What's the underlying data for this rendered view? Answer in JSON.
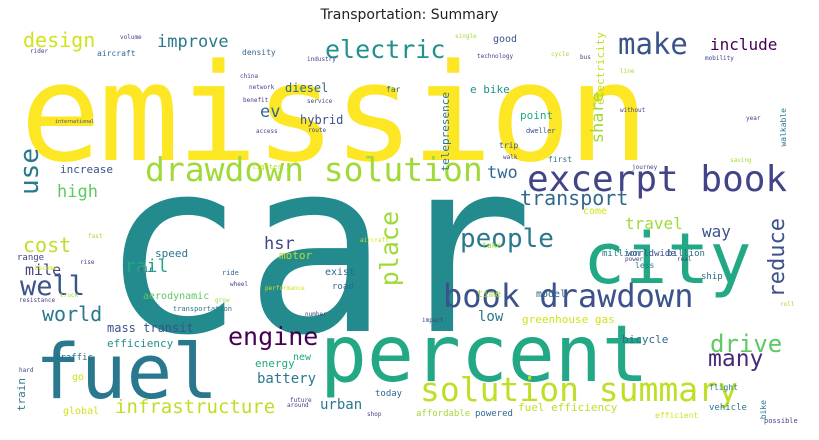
{
  "title": "Transportation: Summary",
  "words": [
    {
      "text": "car",
      "color": "#238a8d"
    },
    {
      "text": "emission",
      "color": "#fde725"
    },
    {
      "text": "percent",
      "color": "#22a884"
    },
    {
      "text": "fuel",
      "color": "#2a788e"
    },
    {
      "text": "city",
      "color": "#22a884"
    },
    {
      "text": "excerpt book",
      "color": "#414487"
    },
    {
      "text": "drawdown solution",
      "color": "#a0da39"
    },
    {
      "text": "book drawdown",
      "color": "#3b528b"
    },
    {
      "text": "solution summary",
      "color": "#bddf26"
    },
    {
      "text": "electric",
      "color": "#21918c"
    },
    {
      "text": "make",
      "color": "#3b528b"
    },
    {
      "text": "people",
      "color": "#2a788e"
    },
    {
      "text": "design",
      "color": "#d2e21b"
    },
    {
      "text": "improve",
      "color": "#2a788e"
    },
    {
      "text": "include",
      "color": "#440154"
    },
    {
      "text": "use",
      "color": "#2a788e"
    },
    {
      "text": "well",
      "color": "#3b528b"
    },
    {
      "text": "transport",
      "color": "#31688e"
    },
    {
      "text": "engine",
      "color": "#440154"
    },
    {
      "text": "drive",
      "color": "#5ec962"
    },
    {
      "text": "many",
      "color": "#482878"
    },
    {
      "text": "infrastructure",
      "color": "#bddf26"
    },
    {
      "text": "world",
      "color": "#2a788e"
    },
    {
      "text": "place",
      "color": "#a0da39"
    },
    {
      "text": "reduce",
      "color": "#3b528b"
    },
    {
      "text": "cost",
      "color": "#bddf26"
    },
    {
      "text": "high",
      "color": "#5ec962"
    },
    {
      "text": "mile",
      "color": "#414487"
    },
    {
      "text": "rail",
      "color": "#22a884"
    },
    {
      "text": "travel",
      "color": "#a0da39"
    },
    {
      "text": "way",
      "color": "#3b528b"
    },
    {
      "text": "ev",
      "color": "#31688e"
    },
    {
      "text": "hsr",
      "color": "#414487"
    },
    {
      "text": "two",
      "color": "#31688e"
    },
    {
      "text": "share",
      "color": "#a0da39"
    },
    {
      "text": "hybrid",
      "color": "#3b528b"
    },
    {
      "text": "diesel",
      "color": "#31688e"
    },
    {
      "text": "e bike",
      "color": "#21918c"
    },
    {
      "text": "point",
      "color": "#22a884"
    },
    {
      "text": "electricity",
      "color": "#bddf26"
    },
    {
      "text": "telepresence",
      "color": "#2a788e"
    },
    {
      "text": "increase",
      "color": "#3b528b"
    },
    {
      "text": "low",
      "color": "#2a788e"
    },
    {
      "text": "greenhouse gas",
      "color": "#d2e21b"
    },
    {
      "text": "mass transit",
      "color": "#3b528b"
    },
    {
      "text": "bicycle",
      "color": "#31688e"
    },
    {
      "text": "efficiency",
      "color": "#21918c"
    },
    {
      "text": "aerodynamic",
      "color": "#5ec962"
    },
    {
      "text": "battery",
      "color": "#2a788e"
    },
    {
      "text": "urban",
      "color": "#2a788e"
    },
    {
      "text": "energy",
      "color": "#22a884"
    },
    {
      "text": "fuel efficiency",
      "color": "#bddf26"
    },
    {
      "text": "global",
      "color": "#d2e21b"
    },
    {
      "text": "train",
      "color": "#2a788e"
    },
    {
      "text": "speed",
      "color": "#2a788e"
    },
    {
      "text": "motor",
      "color": "#bddf26"
    },
    {
      "text": "exist",
      "color": "#31688e"
    },
    {
      "text": "road",
      "color": "#31688e"
    },
    {
      "text": "time",
      "color": "#a0da39"
    },
    {
      "text": "model",
      "color": "#31688e"
    },
    {
      "text": "come",
      "color": "#d2e21b"
    },
    {
      "text": "good",
      "color": "#3b528b"
    },
    {
      "text": "range",
      "color": "#414487"
    },
    {
      "text": "new",
      "color": "#22a884"
    },
    {
      "text": "go",
      "color": "#d2e21b"
    },
    {
      "text": "affordable",
      "color": "#a0da39"
    },
    {
      "text": "powered",
      "color": "#31688e"
    },
    {
      "text": "billion",
      "color": "#31688e"
    },
    {
      "text": "million",
      "color": "#2a788e"
    },
    {
      "text": "worldwide",
      "color": "#3b528b"
    },
    {
      "text": "ship",
      "color": "#31688e"
    },
    {
      "text": "flight",
      "color": "#2a788e"
    },
    {
      "text": "vehicle",
      "color": "#2a788e"
    },
    {
      "text": "efficient",
      "color": "#d2e21b"
    },
    {
      "text": "bike",
      "color": "#2a788e"
    },
    {
      "text": "possible",
      "color": "#414487"
    },
    {
      "text": "traffic",
      "color": "#31688e"
    },
    {
      "text": "today",
      "color": "#31688e"
    },
    {
      "text": "transportation",
      "color": "#2a788e"
    },
    {
      "text": "density",
      "color": "#31688e"
    },
    {
      "text": "aircraft",
      "color": "#31688e"
    },
    {
      "text": "trip",
      "color": "#3b528b"
    },
    {
      "text": "far",
      "color": "#31688e"
    },
    {
      "text": "dweller",
      "color": "#3b528b"
    },
    {
      "text": "first",
      "color": "#2a788e"
    },
    {
      "text": "take",
      "color": "#a0da39"
    },
    {
      "text": "less",
      "color": "#2a788e"
    },
    {
      "text": "walkable",
      "color": "#2a788e"
    },
    {
      "text": "lighter",
      "color": "#bddf26"
    },
    {
      "text": "air",
      "color": "#31688e"
    },
    {
      "text": "ride",
      "color": "#31688e"
    },
    {
      "text": "rider",
      "color": "#414487"
    },
    {
      "text": "volume",
      "color": "#414487"
    },
    {
      "text": "industry",
      "color": "#414487"
    },
    {
      "text": "network",
      "color": "#414487"
    },
    {
      "text": "china",
      "color": "#414487"
    },
    {
      "text": "benefit",
      "color": "#414487"
    },
    {
      "text": "international",
      "color": "#414487"
    },
    {
      "text": "service",
      "color": "#414487"
    },
    {
      "text": "route",
      "color": "#414487"
    },
    {
      "text": "access",
      "color": "#414487"
    },
    {
      "text": "single",
      "color": "#a0da39"
    },
    {
      "text": "technology",
      "color": "#414487"
    },
    {
      "text": "cycle",
      "color": "#a0da39"
    },
    {
      "text": "bus",
      "color": "#414487"
    },
    {
      "text": "mobility",
      "color": "#414487"
    },
    {
      "text": "line",
      "color": "#a0da39"
    },
    {
      "text": "without",
      "color": "#414487"
    },
    {
      "text": "year",
      "color": "#414487"
    },
    {
      "text": "saving",
      "color": "#a0da39"
    },
    {
      "text": "walk",
      "color": "#414487"
    },
    {
      "text": "journey",
      "color": "#414487"
    },
    {
      "text": "power",
      "color": "#414487"
    },
    {
      "text": "real",
      "color": "#414487"
    },
    {
      "text": "roll",
      "color": "#a0da39"
    },
    {
      "text": "wheel",
      "color": "#414487"
    },
    {
      "text": "grow",
      "color": "#a0da39"
    },
    {
      "text": "performance",
      "color": "#d2e21b"
    },
    {
      "text": "number",
      "color": "#414487"
    },
    {
      "text": "impact",
      "color": "#414487"
    },
    {
      "text": "resistance",
      "color": "#414487"
    },
    {
      "text": "truck",
      "color": "#a0da39"
    },
    {
      "text": "future",
      "color": "#414487"
    },
    {
      "text": "hard",
      "color": "#414487"
    },
    {
      "text": "around",
      "color": "#414487"
    },
    {
      "text": "shop",
      "color": "#414487"
    },
    {
      "text": "become",
      "color": "#d2e21b"
    },
    {
      "text": "rise",
      "color": "#414487"
    },
    {
      "text": "fast",
      "color": "#a0da39"
    },
    {
      "text": "aircraft",
      "color": "#d2e21b"
    }
  ]
}
